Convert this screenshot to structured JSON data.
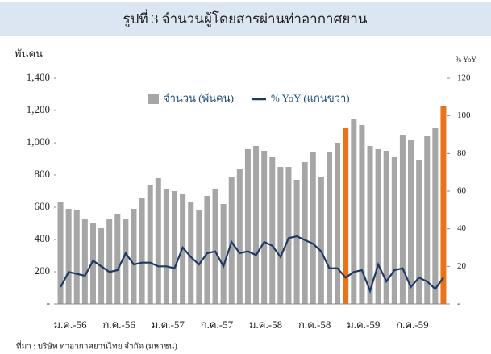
{
  "chart_data": {
    "type": "bar_line",
    "title": "รูปที่ 3 จำนวนผู้โดยสารผ่านท่าอากาศยาน",
    "y_label": "พันคน",
    "y2_label": "% YoY",
    "source": "ที่มา : บริษัท ท่าอากาศยานไทย จำกัด (มหาชน)",
    "categories": [
      "ม.ค.-56",
      null,
      null,
      null,
      null,
      null,
      "ก.ค.-56",
      null,
      null,
      null,
      null,
      null,
      "ม.ค.-57",
      null,
      null,
      null,
      null,
      null,
      "ก.ค.-57",
      null,
      null,
      null,
      null,
      null,
      "ม.ค.-58",
      null,
      null,
      null,
      null,
      null,
      "ก.ค.-58",
      null,
      null,
      null,
      null,
      null,
      "ม.ค.-59",
      null,
      null,
      null,
      null,
      null,
      "ก.ค.-59",
      null,
      null,
      null,
      null,
      null
    ],
    "series": [
      {
        "name": "จำนวน (พันคน)",
        "color": "#a6a6a6",
        "colors": [
          "#a6a6a6",
          "#a6a6a6",
          "#a6a6a6",
          "#a6a6a6",
          "#a6a6a6",
          "#a6a6a6",
          "#a6a6a6",
          "#a6a6a6",
          "#a6a6a6",
          "#a6a6a6",
          "#a6a6a6",
          "#a6a6a6",
          "#a6a6a6",
          "#a6a6a6",
          "#a6a6a6",
          "#a6a6a6",
          "#a6a6a6",
          "#a6a6a6",
          "#a6a6a6",
          "#a6a6a6",
          "#a6a6a6",
          "#a6a6a6",
          "#a6a6a6",
          "#a6a6a6",
          "#a6a6a6",
          "#a6a6a6",
          "#a6a6a6",
          "#a6a6a6",
          "#a6a6a6",
          "#a6a6a6",
          "#a6a6a6",
          "#a6a6a6",
          "#a6a6a6",
          "#a6a6a6",
          "#a6a6a6",
          "#e8731b",
          "#a6a6a6",
          "#a6a6a6",
          "#a6a6a6",
          "#a6a6a6",
          "#a6a6a6",
          "#a6a6a6",
          "#a6a6a6",
          "#a6a6a6",
          "#a6a6a6",
          "#a6a6a6",
          "#a6a6a6",
          "#e8731b"
        ],
        "values": [
          630,
          590,
          580,
          530,
          500,
          470,
          530,
          560,
          530,
          590,
          660,
          740,
          780,
          710,
          700,
          680,
          630,
          580,
          670,
          710,
          620,
          790,
          840,
          960,
          980,
          950,
          910,
          850,
          850,
          770,
          880,
          940,
          790,
          940,
          1000,
          1090,
          1150,
          1110,
          980,
          960,
          950,
          910,
          1050,
          1020,
          890,
          1040,
          1090,
          1230
        ]
      },
      {
        "name": "% YoY (แกนขวา)",
        "color": "#1f3864",
        "axis": "y2",
        "values": [
          9,
          17,
          16,
          15,
          23,
          20,
          17,
          18,
          27,
          21,
          22,
          22,
          20,
          20,
          19,
          30,
          25,
          21,
          27,
          28,
          20,
          33,
          27,
          28,
          26,
          33,
          31,
          25,
          35,
          36,
          34,
          32,
          28,
          19,
          19,
          14,
          17,
          18,
          7,
          21,
          12,
          18,
          19,
          9,
          14,
          12,
          8,
          14
        ]
      }
    ],
    "ylim": [
      0,
      1400
    ],
    "yticks": [
      {
        "value": 0,
        "label": "-"
      },
      200,
      400,
      600,
      800,
      {
        "value": 1000,
        "label": "1,000"
      },
      {
        "value": 1200,
        "label": "1,200"
      },
      {
        "value": 1400,
        "label": "1,400"
      }
    ],
    "y2lim": [
      0,
      120
    ],
    "y2ticks": [
      {
        "value": 0,
        "label": "-"
      },
      20,
      40,
      60,
      80,
      100,
      120
    ],
    "grid": false
  }
}
